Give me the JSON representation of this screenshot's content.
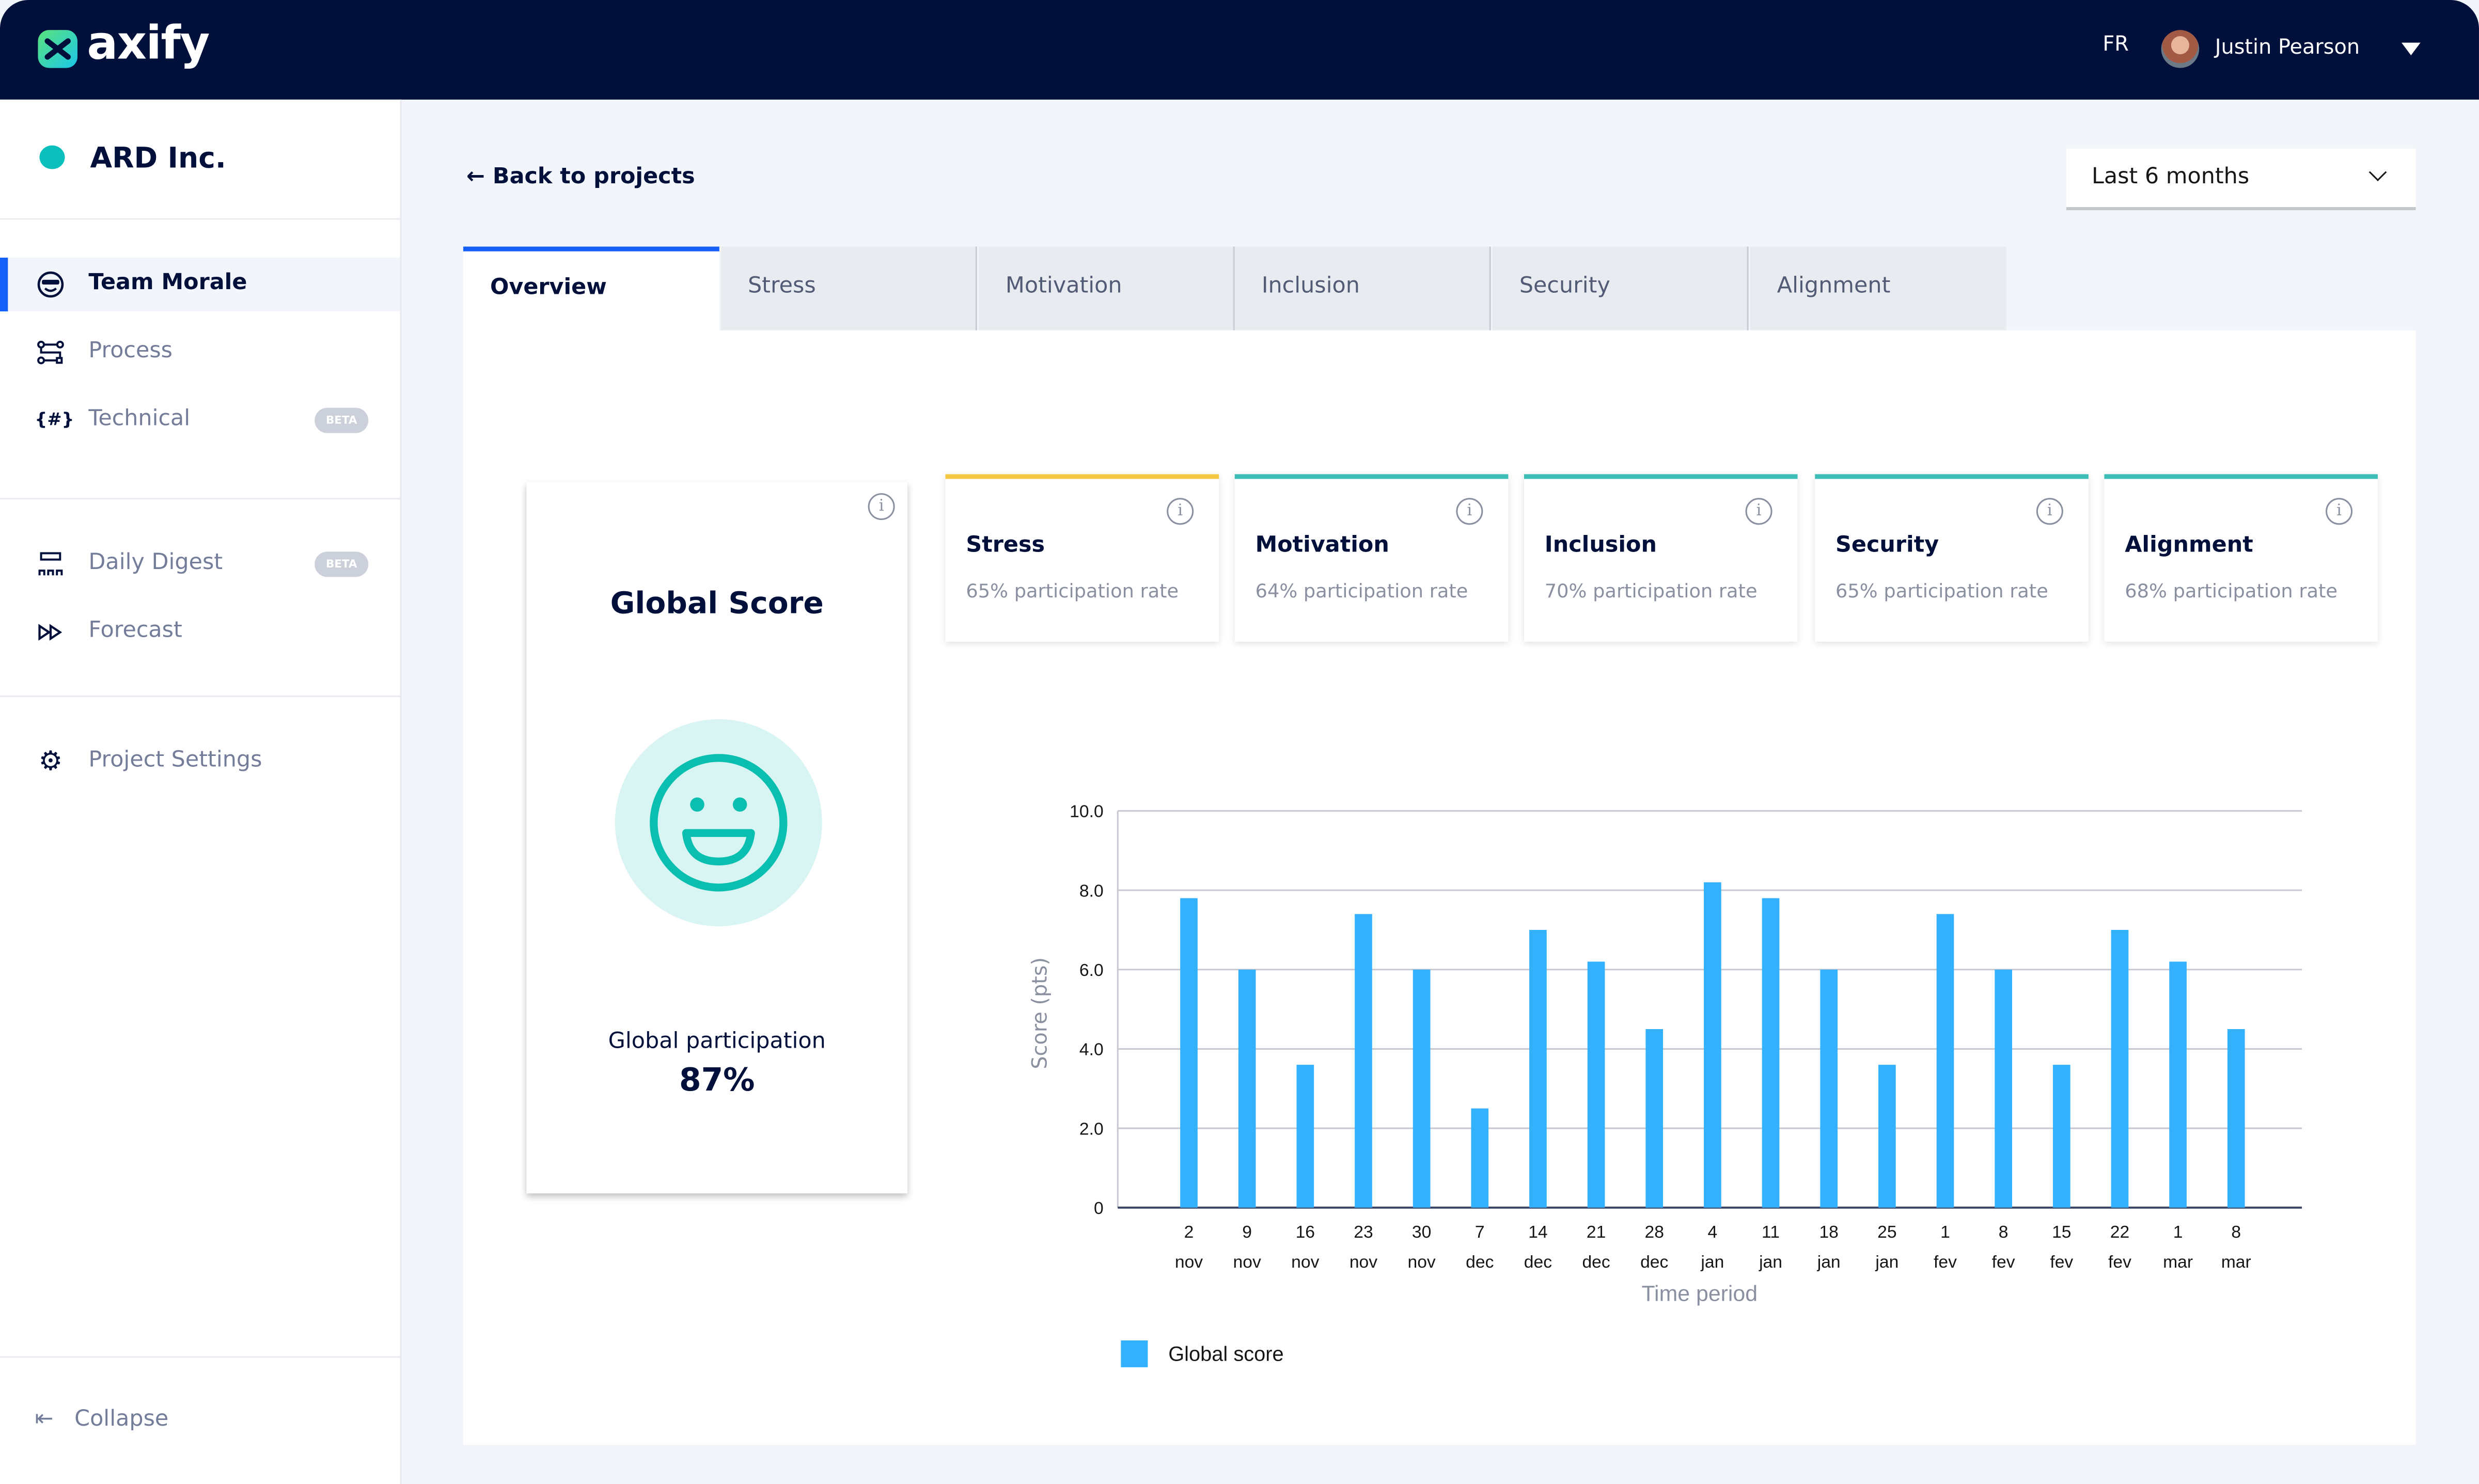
{
  "header": {
    "logo": "axify",
    "language": "FR",
    "user_name": "Justin Pearson"
  },
  "sidebar": {
    "org_name": "ARD Inc.",
    "org_color": "#0abfbc",
    "items": [
      {
        "label": "Team Morale",
        "icon": "sunglasses-face-icon",
        "active": true
      },
      {
        "label": "Process",
        "icon": "workflow-icon"
      },
      {
        "label": "Technical",
        "icon": "code-hash-icon",
        "badge": "BETA"
      },
      {
        "label": "Daily Digest",
        "icon": "team-board-icon",
        "badge": "BETA"
      },
      {
        "label": "Forecast",
        "icon": "fast-forward-icon"
      },
      {
        "label": "Project Settings",
        "icon": "gear-icon"
      }
    ],
    "collapse_label": "Collapse"
  },
  "main": {
    "back_label": "Back to projects",
    "period_select": "Last 6 months",
    "tabs": [
      {
        "label": "Overview"
      },
      {
        "label": "Stress"
      },
      {
        "label": "Motivation"
      },
      {
        "label": "Inclusion"
      },
      {
        "label": "Security"
      },
      {
        "label": "Alignment"
      }
    ],
    "global_card": {
      "title": "Global Score",
      "participation_label": "Global participation",
      "participation_value": "87%"
    },
    "metrics": [
      {
        "title": "Stress",
        "subtitle": "65% participation rate",
        "color": "#f5c842"
      },
      {
        "title": "Motivation",
        "subtitle": "64% participation rate",
        "color": "#3dbdb5"
      },
      {
        "title": "Inclusion",
        "subtitle": "70% participation rate",
        "color": "#3dbdb5"
      },
      {
        "title": "Security",
        "subtitle": "65% participation rate",
        "color": "#3dbdb5"
      },
      {
        "title": "Alignment",
        "subtitle": "68% participation rate",
        "color": "#3dbdb5"
      }
    ]
  },
  "chart_data": {
    "type": "bar",
    "categories": [
      [
        "2",
        "nov"
      ],
      [
        "9",
        "nov"
      ],
      [
        "16",
        "nov"
      ],
      [
        "23",
        "nov"
      ],
      [
        "30",
        "nov"
      ],
      [
        "7",
        "dec"
      ],
      [
        "14",
        "dec"
      ],
      [
        "21",
        "dec"
      ],
      [
        "28",
        "dec"
      ],
      [
        "4",
        "jan"
      ],
      [
        "11",
        "jan"
      ],
      [
        "18",
        "jan"
      ],
      [
        "25",
        "jan"
      ],
      [
        "1",
        "fev"
      ],
      [
        "8",
        "fev"
      ],
      [
        "15",
        "fev"
      ],
      [
        "22",
        "fev"
      ],
      [
        "1",
        "mar"
      ],
      [
        "8",
        "mar"
      ]
    ],
    "series": [
      {
        "name": "Global score",
        "values": [
          7.8,
          6.0,
          3.6,
          7.4,
          6.0,
          2.5,
          7.0,
          6.2,
          4.5,
          8.2,
          7.8,
          6.0,
          3.6,
          7.4,
          6.0,
          3.6,
          7.0,
          6.2,
          4.5
        ],
        "color": "#33b1ff"
      }
    ],
    "xlabel": "Time period",
    "ylabel": "Score (pts)",
    "yticks": [
      "0",
      "2.0",
      "4.0",
      "6.0",
      "8.0",
      "10.0"
    ],
    "ylim": [
      0,
      10
    ],
    "grid": true,
    "legend": "bottom-left"
  }
}
